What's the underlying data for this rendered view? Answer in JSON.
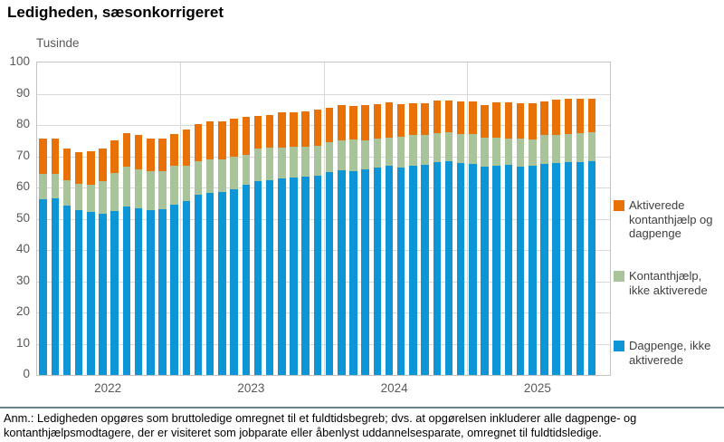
{
  "chart_data": {
    "type": "bar",
    "stacked": true,
    "title": "Ledigheden, sæsonkorrigeret",
    "unit_label": "Tusinde",
    "ylim": [
      0,
      100
    ],
    "ytick_step": 10,
    "grid": true,
    "legend_position": "right",
    "slots_per_group": 12,
    "x_groups": [
      {
        "label": "2022",
        "count": 12
      },
      {
        "label": "2023",
        "count": 12
      },
      {
        "label": "2024",
        "count": 12
      },
      {
        "label": "2025",
        "count": 11
      }
    ],
    "series": [
      {
        "name": "Dagpenge, ikke aktiverede",
        "legend_lines": [
          "Dagpenge, ikke",
          "aktiverede"
        ],
        "color": "#0d95d5",
        "values": [
          56.2,
          56.5,
          54.1,
          52.9,
          52.2,
          51.5,
          52.6,
          53.9,
          53.4,
          52.9,
          53.1,
          54.4,
          55.6,
          57.6,
          58.2,
          58.6,
          59.5,
          61.0,
          61.9,
          62.4,
          62.9,
          63.1,
          63.5,
          63.9,
          64.8,
          65.5,
          65.3,
          65.9,
          66.3,
          66.9,
          66.5,
          66.9,
          67.3,
          68.0,
          68.3,
          67.8,
          67.5,
          66.6,
          67.1,
          67.3,
          66.7,
          66.9,
          67.4,
          67.8,
          68.0,
          68.2,
          68.4
        ]
      },
      {
        "name": "Kontanthjælp, ikke aktiverede",
        "legend_lines": [
          "Kontanthjælp,",
          "ikke aktiverede"
        ],
        "color": "#a9c39a",
        "values": [
          8.2,
          7.9,
          8.1,
          8.2,
          8.6,
          10.4,
          12.0,
          12.7,
          12.5,
          12.4,
          12.2,
          12.5,
          11.3,
          10.7,
          10.8,
          10.4,
          10.3,
          9.4,
          10.5,
          10.4,
          9.9,
          10.0,
          9.6,
          9.4,
          9.7,
          9.5,
          10.0,
          9.1,
          9.3,
          9.0,
          9.6,
          9.8,
          9.6,
          9.5,
          9.4,
          9.4,
          9.7,
          9.3,
          8.8,
          8.5,
          8.9,
          8.4,
          9.3,
          9.1,
          9.0,
          9.2,
          9.3
        ]
      },
      {
        "name": "Aktiverede kontanthjælp og dagpenge",
        "legend_lines": [
          "Aktiverede",
          "kontanthjælp og",
          "dagpenge"
        ],
        "color": "#e97208",
        "values": [
          11.4,
          11.2,
          10.2,
          10.3,
          10.7,
          10.7,
          10.6,
          10.9,
          10.8,
          10.3,
          10.5,
          10.3,
          11.7,
          12.1,
          12.1,
          12.3,
          12.1,
          12.3,
          10.6,
          10.5,
          11.2,
          11.1,
          11.3,
          11.6,
          11.1,
          11.4,
          10.9,
          11.4,
          11.0,
          11.3,
          10.6,
          10.4,
          10.0,
          10.3,
          10.1,
          10.2,
          10.3,
          10.5,
          11.3,
          11.6,
          11.3,
          11.6,
          10.8,
          11.2,
          11.3,
          11.1,
          10.6
        ]
      }
    ]
  },
  "footnote": {
    "line1": "Anm.: Ledigheden opgøres som bruttoledige omregnet til et fuldtidsbegreb; dvs. at opgørelsen inkluderer alle dagpenge- og",
    "line2": "kontanthjælpsmodtagere, der er visiteret som jobparate eller åbenlyst uddannelsesparate, omregnet til fuldtidsledige."
  },
  "colors": {
    "grid": "#d9d9d9",
    "plot_border": "#c3c3c3",
    "axis_text": "#595959",
    "separator": "#68818f"
  }
}
